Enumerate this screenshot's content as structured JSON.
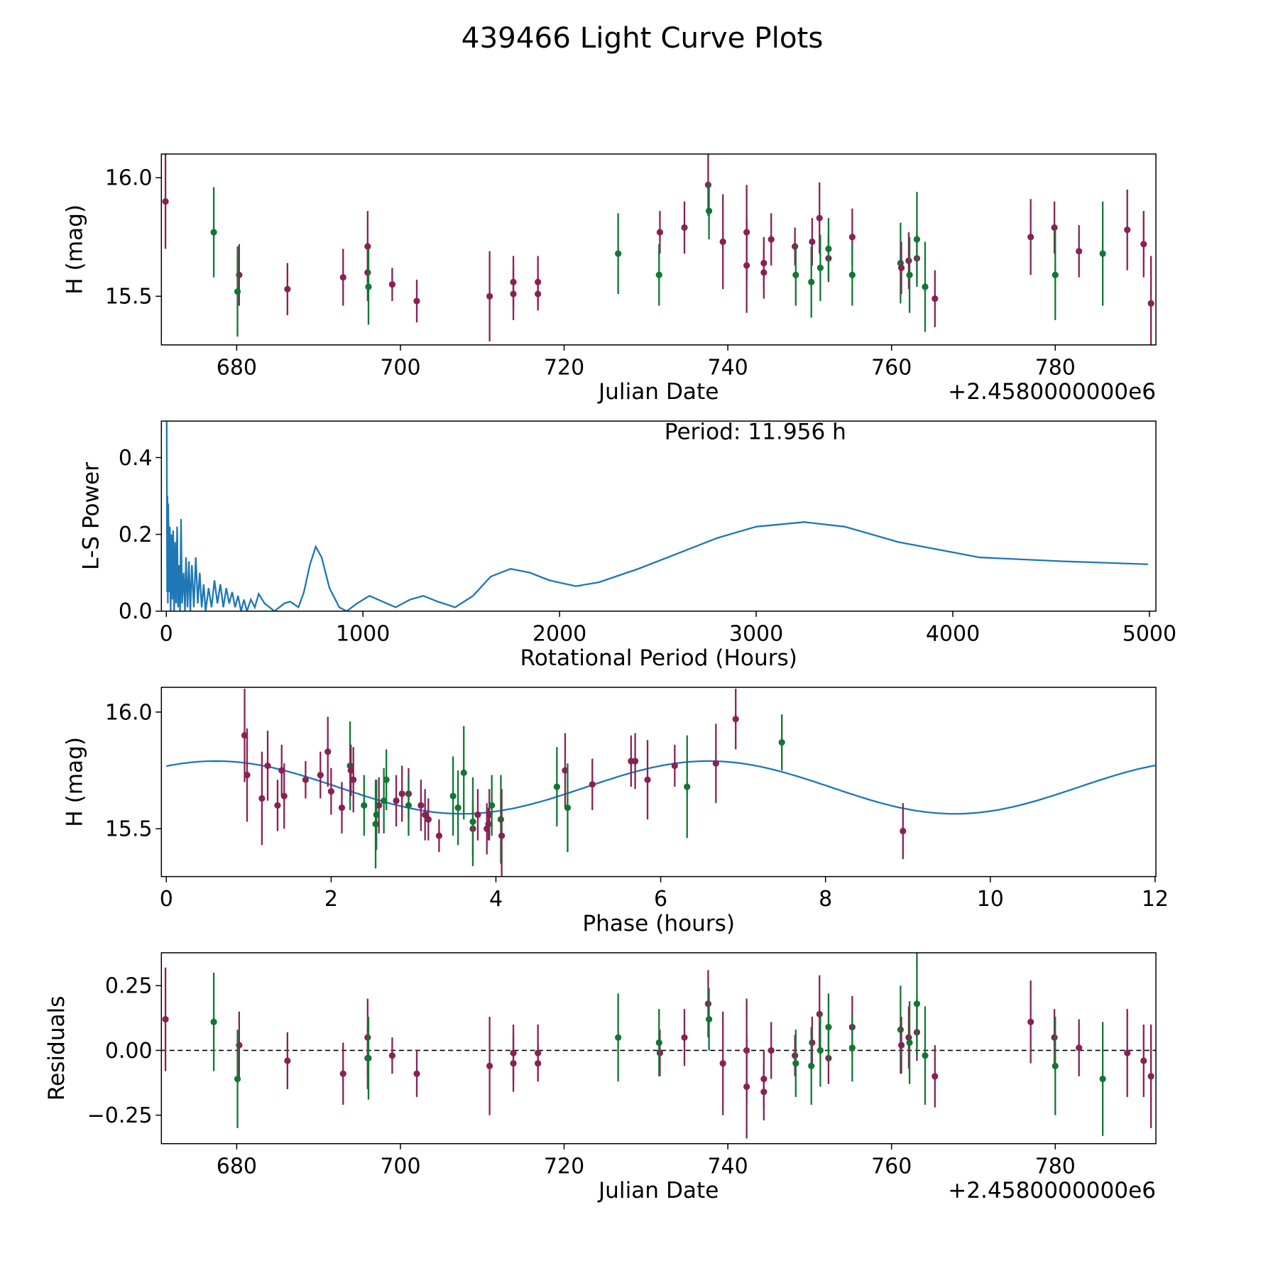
{
  "title": "439466 Light Curve Plots",
  "colors": {
    "band_a": "#882255",
    "band_b": "#117733",
    "line": "#1f77b4"
  },
  "chart_data": [
    {
      "type": "scatter",
      "name": "light-curve",
      "xlabel": "Julian Date",
      "ylabel": "H (mag)",
      "offset_text": "+2.4580000000e6",
      "xlim": [
        670.8,
        792.3
      ],
      "ylim": [
        15.295,
        16.1
      ],
      "x_ticks": [
        {
          "value": 680,
          "label": "680"
        },
        {
          "value": 700,
          "label": "700"
        },
        {
          "value": 720,
          "label": "720"
        },
        {
          "value": 740,
          "label": "740"
        },
        {
          "value": 760,
          "label": "760"
        },
        {
          "value": 780,
          "label": "780"
        }
      ],
      "y_ticks": [
        {
          "value": 15.5,
          "label": "15.5"
        },
        {
          "value": 16.0,
          "label": "16.0"
        }
      ],
      "points_fields": [
        "jd_offset",
        "mag",
        "err",
        "residual",
        "band"
      ],
      "points": [
        [
          671.3,
          15.9,
          0.2,
          0.12,
          "a"
        ],
        [
          677.2,
          15.77,
          0.19,
          0.11,
          "b"
        ],
        [
          680.3,
          15.59,
          0.13,
          0.02,
          "a"
        ],
        [
          680.1,
          15.52,
          0.19,
          -0.11,
          "b"
        ],
        [
          686.2,
          15.53,
          0.11,
          -0.04,
          "a"
        ],
        [
          693.0,
          15.58,
          0.12,
          -0.09,
          "a"
        ],
        [
          696.0,
          15.71,
          0.15,
          0.05,
          "a"
        ],
        [
          696.0,
          15.6,
          0.12,
          -0.03,
          "a"
        ],
        [
          696.1,
          15.54,
          0.16,
          -0.03,
          "b"
        ],
        [
          699.0,
          15.55,
          0.07,
          -0.02,
          "a"
        ],
        [
          702.0,
          15.48,
          0.09,
          -0.09,
          "a"
        ],
        [
          710.9,
          15.5,
          0.19,
          -0.06,
          "a"
        ],
        [
          713.8,
          15.51,
          0.11,
          -0.01,
          "a"
        ],
        [
          713.8,
          15.56,
          0.11,
          -0.05,
          "a"
        ],
        [
          716.8,
          15.56,
          0.11,
          -0.01,
          "a"
        ],
        [
          716.8,
          15.51,
          0.07,
          -0.05,
          "a"
        ],
        [
          726.6,
          15.68,
          0.17,
          0.05,
          "b"
        ],
        [
          731.7,
          15.77,
          0.09,
          -0.01,
          "a"
        ],
        [
          731.6,
          15.59,
          0.13,
          0.03,
          "b"
        ],
        [
          734.7,
          15.79,
          0.11,
          0.05,
          "a"
        ],
        [
          737.6,
          15.97,
          0.13,
          0.18,
          "a"
        ],
        [
          737.7,
          15.86,
          0.12,
          0.12,
          "b"
        ],
        [
          739.4,
          15.73,
          0.2,
          -0.05,
          "a"
        ],
        [
          742.3,
          15.77,
          0.2,
          0.0,
          "a"
        ],
        [
          742.3,
          15.63,
          0.2,
          -0.14,
          "a"
        ],
        [
          744.4,
          15.64,
          0.11,
          -0.11,
          "a"
        ],
        [
          744.4,
          15.6,
          0.11,
          -0.16,
          "a"
        ],
        [
          745.3,
          15.74,
          0.11,
          0.0,
          "a"
        ],
        [
          748.2,
          15.71,
          0.08,
          -0.02,
          "a"
        ],
        [
          748.3,
          15.59,
          0.13,
          -0.05,
          "b"
        ],
        [
          750.3,
          15.73,
          0.1,
          0.03,
          "a"
        ],
        [
          750.2,
          15.56,
          0.15,
          -0.06,
          "b"
        ],
        [
          751.2,
          15.83,
          0.15,
          0.14,
          "a"
        ],
        [
          751.3,
          15.62,
          0.14,
          0.0,
          "b"
        ],
        [
          752.3,
          15.66,
          0.1,
          -0.03,
          "a"
        ],
        [
          752.3,
          15.7,
          0.13,
          0.09,
          "b"
        ],
        [
          755.2,
          15.75,
          0.12,
          0.09,
          "a"
        ],
        [
          755.2,
          15.59,
          0.13,
          0.01,
          "b"
        ],
        [
          761.1,
          15.64,
          0.17,
          0.08,
          "b"
        ],
        [
          761.2,
          15.62,
          0.11,
          0.02,
          "a"
        ],
        [
          762.1,
          15.65,
          0.12,
          0.05,
          "a"
        ],
        [
          762.2,
          15.59,
          0.16,
          0.03,
          "b"
        ],
        [
          763.1,
          15.66,
          0.11,
          0.07,
          "a"
        ],
        [
          763.1,
          15.74,
          0.2,
          0.18,
          "b"
        ],
        [
          764.1,
          15.54,
          0.19,
          -0.02,
          "b"
        ],
        [
          765.3,
          15.49,
          0.12,
          -0.1,
          "a"
        ],
        [
          777.0,
          15.75,
          0.16,
          0.11,
          "a"
        ],
        [
          779.9,
          15.79,
          0.11,
          0.05,
          "a"
        ],
        [
          780.0,
          15.59,
          0.19,
          -0.06,
          "b"
        ],
        [
          782.9,
          15.69,
          0.11,
          0.01,
          "a"
        ],
        [
          785.8,
          15.68,
          0.22,
          -0.11,
          "b"
        ],
        [
          788.8,
          15.78,
          0.17,
          -0.01,
          "a"
        ],
        [
          790.8,
          15.72,
          0.14,
          -0.04,
          "a"
        ],
        [
          791.7,
          15.47,
          0.2,
          -0.1,
          "a"
        ]
      ]
    },
    {
      "type": "line",
      "name": "periodogram",
      "xlabel": "Rotational Period (Hours)",
      "ylabel": "L-S Power",
      "annotation": "Period: 11.956 h",
      "xlim": [
        -25,
        5033
      ],
      "ylim": [
        0,
        0.495
      ],
      "x_ticks": [
        {
          "value": 0,
          "label": "0"
        },
        {
          "value": 1000,
          "label": "1000"
        },
        {
          "value": 2000,
          "label": "2000"
        },
        {
          "value": 3000,
          "label": "3000"
        },
        {
          "value": 4000,
          "label": "4000"
        },
        {
          "value": 5000,
          "label": "5000"
        }
      ],
      "y_ticks": [
        {
          "value": 0,
          "label": "0.0"
        },
        {
          "value": 0.2,
          "label": "0.2"
        },
        {
          "value": 0.4,
          "label": "0.4"
        }
      ],
      "series": [
        [
          2,
          0.5
        ],
        [
          4,
          0.05
        ],
        [
          6,
          0.3
        ],
        [
          8,
          0.02
        ],
        [
          10,
          0.28
        ],
        [
          14,
          0.05
        ],
        [
          18,
          0.22
        ],
        [
          22,
          0.0
        ],
        [
          26,
          0.2
        ],
        [
          30,
          0.03
        ],
        [
          35,
          0.21
        ],
        [
          40,
          0.0
        ],
        [
          45,
          0.18
        ],
        [
          50,
          0.02
        ],
        [
          55,
          0.22
        ],
        [
          60,
          0.01
        ],
        [
          65,
          0.12
        ],
        [
          70,
          0.0
        ],
        [
          75,
          0.24
        ],
        [
          80,
          0.02
        ],
        [
          88,
          0.1
        ],
        [
          95,
          0.0
        ],
        [
          100,
          0.14
        ],
        [
          108,
          0.01
        ],
        [
          115,
          0.13
        ],
        [
          122,
          0.0
        ],
        [
          130,
          0.12
        ],
        [
          140,
          0.01
        ],
        [
          150,
          0.14
        ],
        [
          160,
          0.02
        ],
        [
          170,
          0.1
        ],
        [
          180,
          0.01
        ],
        [
          190,
          0.07
        ],
        [
          200,
          0.0
        ],
        [
          215,
          0.06
        ],
        [
          230,
          0.01
        ],
        [
          245,
          0.08
        ],
        [
          260,
          0.02
        ],
        [
          275,
          0.07
        ],
        [
          290,
          0.01
        ],
        [
          305,
          0.06
        ],
        [
          320,
          0.02
        ],
        [
          335,
          0.05
        ],
        [
          350,
          0.01
        ],
        [
          365,
          0.04
        ],
        [
          380,
          0.0
        ],
        [
          395,
          0.03
        ],
        [
          410,
          0.0
        ],
        [
          430,
          0.03
        ],
        [
          450,
          0.01
        ],
        [
          470,
          0.045
        ],
        [
          500,
          0.02
        ],
        [
          550,
          0.0
        ],
        [
          600,
          0.02
        ],
        [
          630,
          0.025
        ],
        [
          672,
          0.01
        ],
        [
          700,
          0.05
        ],
        [
          730,
          0.12
        ],
        [
          760,
          0.168
        ],
        [
          790,
          0.14
        ],
        [
          830,
          0.06
        ],
        [
          880,
          0.01
        ],
        [
          917,
          0.0
        ],
        [
          970,
          0.02
        ],
        [
          1033,
          0.04
        ],
        [
          1100,
          0.025
        ],
        [
          1166,
          0.01
        ],
        [
          1240,
          0.03
        ],
        [
          1307,
          0.04
        ],
        [
          1380,
          0.025
        ],
        [
          1469,
          0.01
        ],
        [
          1560,
          0.04
        ],
        [
          1650,
          0.09
        ],
        [
          1751,
          0.11
        ],
        [
          1850,
          0.1
        ],
        [
          1950,
          0.08
        ],
        [
          2083,
          0.065
        ],
        [
          2200,
          0.075
        ],
        [
          2400,
          0.11
        ],
        [
          2600,
          0.15
        ],
        [
          2800,
          0.19
        ],
        [
          3000,
          0.22
        ],
        [
          3245,
          0.232
        ],
        [
          3450,
          0.22
        ],
        [
          3722,
          0.18
        ],
        [
          4137,
          0.14
        ],
        [
          4552,
          0.13
        ],
        [
          4992,
          0.122
        ]
      ]
    },
    {
      "type": "scatter",
      "name": "phased-light-curve",
      "xlabel": "Phase (hours)",
      "ylabel": "H (mag)",
      "xlim": [
        -0.06,
        12.01
      ],
      "ylim": [
        15.295,
        16.106
      ],
      "x_ticks": [
        {
          "value": 0,
          "label": "0"
        },
        {
          "value": 2,
          "label": "2"
        },
        {
          "value": 4,
          "label": "4"
        },
        {
          "value": 6,
          "label": "6"
        },
        {
          "value": 8,
          "label": "8"
        },
        {
          "value": 10,
          "label": "10"
        },
        {
          "value": 12,
          "label": "12"
        }
      ],
      "y_ticks": [
        {
          "value": 15.5,
          "label": "15.5"
        },
        {
          "value": 16.0,
          "label": "16.0"
        }
      ],
      "model": {
        "mean": 15.677,
        "amplitude": 0.113,
        "period_hours": 5.978,
        "peak_phase": 0.6
      },
      "points_fields": [
        "phase",
        "mag",
        "err",
        "band"
      ],
      "points": [
        [
          0.95,
          15.9,
          0.2,
          "a"
        ],
        [
          0.98,
          15.73,
          0.2,
          "a"
        ],
        [
          1.16,
          15.63,
          0.2,
          "a"
        ],
        [
          1.23,
          15.77,
          0.15,
          "a"
        ],
        [
          1.35,
          15.6,
          0.11,
          "a"
        ],
        [
          1.4,
          15.75,
          0.11,
          "a"
        ],
        [
          1.43,
          15.64,
          0.14,
          "a"
        ],
        [
          1.69,
          15.71,
          0.08,
          "a"
        ],
        [
          1.87,
          15.73,
          0.1,
          "a"
        ],
        [
          1.96,
          15.83,
          0.15,
          "a"
        ],
        [
          2.0,
          15.66,
          0.1,
          "a"
        ],
        [
          2.13,
          15.59,
          0.11,
          "a"
        ],
        [
          2.23,
          15.77,
          0.19,
          "b"
        ],
        [
          2.24,
          15.75,
          0.11,
          "a"
        ],
        [
          2.27,
          15.71,
          0.14,
          "a"
        ],
        [
          2.4,
          15.6,
          0.13,
          "b"
        ],
        [
          2.54,
          15.52,
          0.19,
          "b"
        ],
        [
          2.58,
          15.6,
          0.12,
          "a"
        ],
        [
          2.55,
          15.56,
          0.15,
          "b"
        ],
        [
          2.64,
          15.62,
          0.14,
          "b"
        ],
        [
          2.67,
          15.71,
          0.13,
          "b"
        ],
        [
          2.79,
          15.62,
          0.11,
          "a"
        ],
        [
          2.86,
          15.65,
          0.12,
          "a"
        ],
        [
          2.94,
          15.65,
          0.11,
          "a"
        ],
        [
          2.94,
          15.6,
          0.13,
          "b"
        ],
        [
          3.09,
          15.6,
          0.11,
          "a"
        ],
        [
          3.14,
          15.56,
          0.11,
          "a"
        ],
        [
          3.18,
          15.54,
          0.09,
          "a"
        ],
        [
          3.31,
          15.47,
          0.07,
          "a"
        ],
        [
          3.48,
          15.64,
          0.17,
          "b"
        ],
        [
          3.54,
          15.59,
          0.16,
          "b"
        ],
        [
          3.61,
          15.74,
          0.2,
          "b"
        ],
        [
          3.72,
          15.5,
          0.12,
          "a"
        ],
        [
          3.72,
          15.53,
          0.19,
          "b"
        ],
        [
          3.78,
          15.56,
          0.11,
          "a"
        ],
        [
          3.89,
          15.5,
          0.11,
          "a"
        ],
        [
          3.91,
          15.52,
          0.07,
          "a"
        ],
        [
          3.92,
          15.56,
          0.11,
          "a"
        ],
        [
          3.95,
          15.6,
          0.13,
          "b"
        ],
        [
          4.06,
          15.54,
          0.19,
          "b"
        ],
        [
          4.07,
          15.47,
          0.2,
          "a"
        ],
        [
          4.74,
          15.68,
          0.17,
          "b"
        ],
        [
          4.84,
          15.75,
          0.16,
          "a"
        ],
        [
          4.87,
          15.59,
          0.19,
          "b"
        ],
        [
          5.17,
          15.69,
          0.11,
          "a"
        ],
        [
          5.64,
          15.79,
          0.11,
          "a"
        ],
        [
          5.69,
          15.79,
          0.12,
          "a"
        ],
        [
          5.84,
          15.71,
          0.17,
          "a"
        ],
        [
          6.17,
          15.77,
          0.09,
          "a"
        ],
        [
          6.32,
          15.68,
          0.22,
          "b"
        ],
        [
          6.67,
          15.78,
          0.17,
          "a"
        ],
        [
          6.91,
          15.97,
          0.13,
          "a"
        ],
        [
          7.47,
          15.87,
          0.12,
          "b"
        ],
        [
          8.94,
          15.49,
          0.12,
          "a"
        ]
      ]
    },
    {
      "type": "scatter",
      "name": "residuals",
      "xlabel": "Julian Date",
      "ylabel": "Residuals",
      "offset_text": "+2.4580000000e6",
      "xlim": [
        670.8,
        792.3
      ],
      "ylim": [
        -0.36,
        0.377
      ],
      "x_ticks": [
        {
          "value": 680,
          "label": "680"
        },
        {
          "value": 700,
          "label": "700"
        },
        {
          "value": 720,
          "label": "720"
        },
        {
          "value": 740,
          "label": "740"
        },
        {
          "value": 760,
          "label": "760"
        },
        {
          "value": 780,
          "label": "780"
        }
      ],
      "y_ticks": [
        {
          "value": -0.25,
          "label": "−0.25"
        },
        {
          "value": 0,
          "label": "0.00"
        },
        {
          "value": 0.25,
          "label": "0.25"
        }
      ],
      "reference_line": 0,
      "points_source": "chart_data.0.points (jd_offset, residual, err)"
    }
  ]
}
